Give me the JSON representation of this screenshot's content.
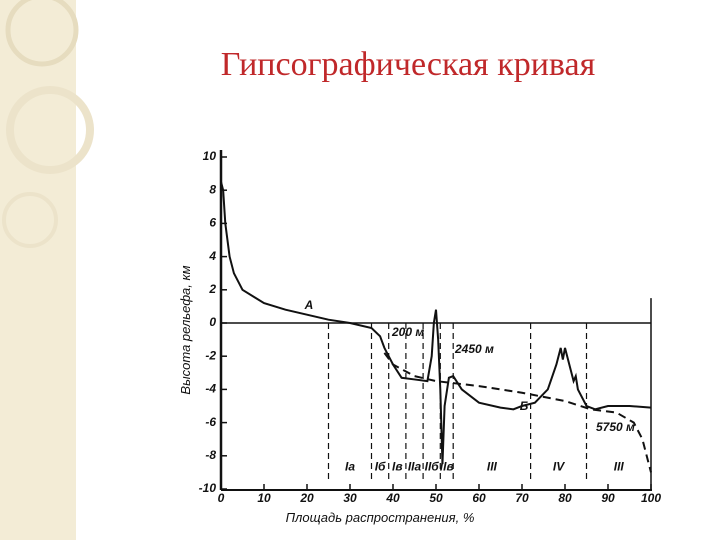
{
  "chart_data": {
    "type": "line",
    "title": "Гипсографическая кривая",
    "x_label": "Площадь распространения, %",
    "y_label": "Высота рельефа, км",
    "xlim": [
      0,
      100
    ],
    "ylim": [
      -10,
      10
    ],
    "xticks": [
      0,
      10,
      20,
      30,
      40,
      50,
      60,
      70,
      80,
      90,
      100
    ],
    "yticks": [
      10,
      8,
      6,
      4,
      2,
      0,
      -2,
      -4,
      -6,
      -8,
      -10
    ],
    "series": [
      {
        "name": "А",
        "color": "#111111",
        "dashed": false,
        "x": [
          0,
          0.5,
          1,
          2,
          3,
          5,
          10,
          15,
          20,
          25,
          30,
          35,
          37,
          38,
          40,
          42,
          45,
          48,
          49,
          49.5,
          50,
          50.5,
          51,
          51.5,
          52,
          53,
          54,
          56,
          60,
          65,
          68,
          70,
          73,
          76,
          78,
          79,
          79.5,
          80,
          81,
          82,
          82.5,
          83,
          85,
          87,
          90,
          95,
          100
        ],
        "values": [
          8.5,
          8,
          6,
          4,
          3,
          2,
          1.2,
          0.8,
          0.5,
          0.2,
          0,
          -0.3,
          -0.8,
          -1.5,
          -2.5,
          -3.3,
          -3.4,
          -3.5,
          -2,
          0,
          0.8,
          -1,
          -4,
          -8.5,
          -5,
          -3.3,
          -3.2,
          -4,
          -4.8,
          -5.1,
          -5.2,
          -5,
          -4.8,
          -4,
          -2.5,
          -1.5,
          -2.2,
          -1.5,
          -2.5,
          -3.5,
          -3.2,
          -4,
          -5,
          -5.2,
          -5,
          -5,
          -5.1
        ]
      },
      {
        "name": "Б",
        "color": "#111111",
        "dashed": true,
        "x": [
          38,
          40,
          45,
          50,
          60,
          70,
          80,
          86,
          92,
          96,
          98,
          100
        ],
        "values": [
          -1.8,
          -2.5,
          -3.2,
          -3.5,
          -3.8,
          -4.2,
          -4.7,
          -5.2,
          -5.4,
          -6,
          -7,
          -9
        ]
      }
    ],
    "zones": [
      {
        "label": "Iа",
        "from": 25,
        "to": 35
      },
      {
        "label": "Iб",
        "from": 35,
        "to": 39
      },
      {
        "label": "Iв",
        "from": 39,
        "to": 43
      },
      {
        "label": "IIа",
        "from": 43,
        "to": 47
      },
      {
        "label": "IIб",
        "from": 47,
        "to": 51
      },
      {
        "label": "IIв",
        "from": 51,
        "to": 54
      },
      {
        "label": "III",
        "from": 54,
        "to": 72
      },
      {
        "label": "IV",
        "from": 72,
        "to": 85
      },
      {
        "label": "III",
        "from": 85,
        "to": 100
      }
    ],
    "annotations": [
      "200 м",
      "2450 м",
      "5750 м"
    ]
  }
}
